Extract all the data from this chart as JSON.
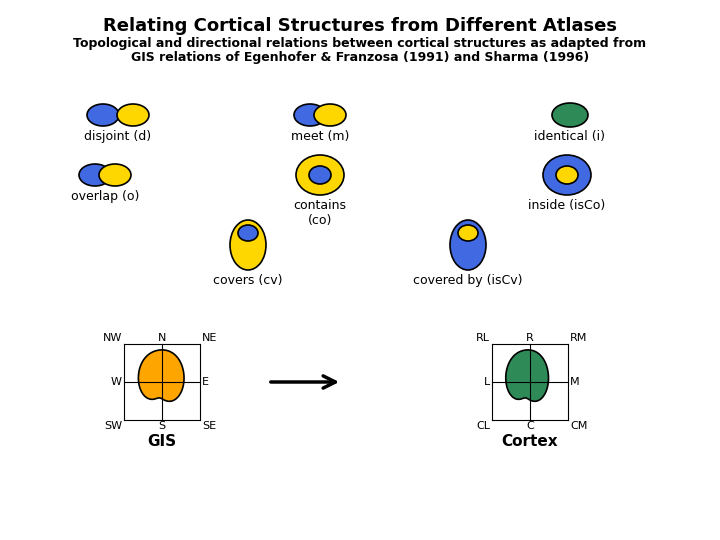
{
  "title": "Relating Cortical Structures from Different Atlases",
  "subtitle1": "Topological and directional relations between cortical structures as adapted from",
  "subtitle2": "GIS relations of Egenhofer & Franzosa (1991) and Sharma (1996)",
  "blue": "#4169E1",
  "yellow": "#FFD700",
  "green": "#2E8B57",
  "orange": "#FFA500",
  "bg": "#FFFFFF",
  "label_disjoint": "disjoint (d)",
  "label_meet": "meet (m)",
  "label_identical": "identical (i)",
  "label_overlap": "overlap (o)",
  "label_contains": "contains\n(co)",
  "label_inside": "inside (isCo)",
  "label_covers": "covers (cv)",
  "label_coveredby": "covered by (isCv)",
  "label_GIS": "GIS",
  "label_Cortex": "Cortex"
}
